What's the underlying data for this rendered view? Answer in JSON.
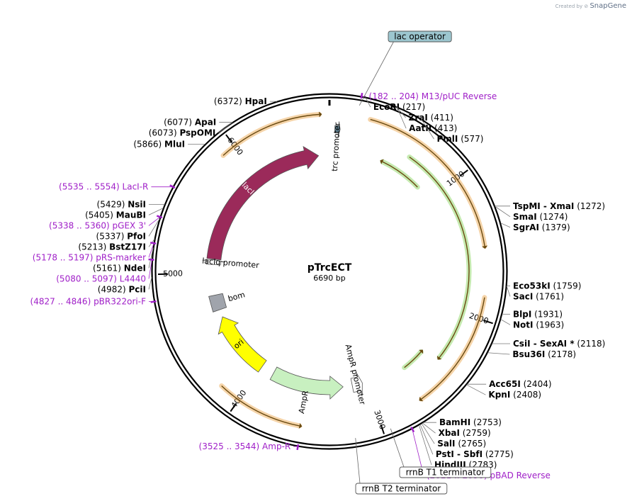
{
  "brand": {
    "created_by": "Created by",
    "app": "SnapGene"
  },
  "plasmid": {
    "name": "pTrcECT",
    "size": "6690 bp",
    "length": 6690
  },
  "ticks": [
    {
      "bp": 0,
      "label": ""
    },
    {
      "bp": 1000,
      "label": "1000"
    },
    {
      "bp": 2000,
      "label": "2000"
    },
    {
      "bp": 3000,
      "label": "3000"
    },
    {
      "bp": 4000,
      "label": "4000"
    },
    {
      "bp": 5000,
      "label": "5000"
    },
    {
      "bp": 6000,
      "label": "6000"
    }
  ],
  "sites": [
    {
      "name": "EcoRI",
      "pos": "(217)",
      "bp": 217
    },
    {
      "name": "ZraI",
      "pos": "(411)",
      "bp": 411
    },
    {
      "name": "AatII",
      "pos": "(413)",
      "bp": 413
    },
    {
      "name": "PmlI",
      "pos": "(577)",
      "bp": 577
    },
    {
      "name": "TspMI",
      "name2": "XmaI",
      "pos": "(1272)",
      "bp": 1272
    },
    {
      "name": "SmaI",
      "pos": "(1274)",
      "bp": 1274
    },
    {
      "name": "SgrAI",
      "pos": "(1379)",
      "bp": 1379
    },
    {
      "name": "Eco53kI",
      "pos": "(1759)",
      "bp": 1759
    },
    {
      "name": "SacI",
      "pos": "(1761)",
      "bp": 1761
    },
    {
      "name": "BlpI",
      "pos": "(1931)",
      "bp": 1931
    },
    {
      "name": "NotI",
      "pos": "(1963)",
      "bp": 1963
    },
    {
      "name": "CsiI",
      "name2": "SexAI *",
      "pos": "(2118)",
      "bp": 2118
    },
    {
      "name": "Bsu36I",
      "pos": "(2178)",
      "bp": 2178
    },
    {
      "name": "Acc65I",
      "pos": "(2404)",
      "bp": 2404
    },
    {
      "name": "KpnI",
      "pos": "(2408)",
      "bp": 2408
    },
    {
      "name": "BamHI",
      "pos": "(2753)",
      "bp": 2753
    },
    {
      "name": "XbaI",
      "pos": "(2759)",
      "bp": 2759
    },
    {
      "name": "SalI",
      "pos": "(2765)",
      "bp": 2765
    },
    {
      "name": "PstI",
      "name2": "SbfI",
      "pos": "(2775)",
      "bp": 2775
    },
    {
      "name": "HindIII",
      "pos": "(2783)",
      "bp": 2783
    },
    {
      "name": "PciI",
      "pos": "(4982)",
      "bp": 4982
    },
    {
      "name": "NdeI",
      "pos": "(5161)",
      "bp": 5161
    },
    {
      "name": "BstZ17I",
      "pos": "(5213)",
      "bp": 5213
    },
    {
      "name": "PfoI",
      "pos": "(5337)",
      "bp": 5337
    },
    {
      "name": "MauBI",
      "pos": "(5405)",
      "bp": 5405
    },
    {
      "name": "NsiI",
      "pos": "(5429)",
      "bp": 5429
    },
    {
      "name": "MluI",
      "pos": "(5866)",
      "bp": 5866
    },
    {
      "name": "PspOMI",
      "pos": "(6073)",
      "bp": 6073
    },
    {
      "name": "ApaI",
      "pos": "(6077)",
      "bp": 6077
    },
    {
      "name": "HpaI",
      "pos": "(6372)",
      "bp": 6372
    }
  ],
  "primers": [
    {
      "range": "(182 .. 204)",
      "name": "M13/pUC Reverse",
      "bp": 193
    },
    {
      "range": "(2821 .. 2838)",
      "name": "pBAD Reverse",
      "bp": 2830
    },
    {
      "range": "(3525 .. 3544)",
      "name": "Amp-R",
      "bp": 3535
    },
    {
      "range": "(4827 .. 4846)",
      "name": "pBR322ori-F",
      "bp": 4836
    },
    {
      "range": "(5080 .. 5097)",
      "name": "L4440",
      "bp": 5088
    },
    {
      "range": "(5178 .. 5197)",
      "name": "pRS-marker",
      "bp": 5187
    },
    {
      "range": "(5338 .. 5360)",
      "name": "pGEX 3'",
      "bp": 5349
    },
    {
      "range": "(5535 .. 5554)",
      "name": "LacI-R",
      "bp": 5545
    }
  ],
  "boxed_features": [
    {
      "name": "lac operator",
      "bp": 190,
      "style": "operator"
    },
    {
      "name": "rrnB T1 terminator",
      "bp": 2950,
      "style": "terminator"
    },
    {
      "name": "rrnB T2 terminator",
      "bp": 3180,
      "style": "terminator"
    }
  ],
  "features": [
    {
      "name": "lacI",
      "start": 5130,
      "end": 6590,
      "color": "#9b2a5a",
      "direction": "cw",
      "ring": "inner"
    },
    {
      "name": "lacIq promoter",
      "start": 5080,
      "end": 5125,
      "color": "#ffffff",
      "direction": "cw",
      "ring": "inner"
    },
    {
      "name": "trc promoter",
      "start": 40,
      "end": 80,
      "color": "#5a7a8a",
      "direction": "cw",
      "ring": "mid"
    },
    {
      "name": "bom",
      "start": 4660,
      "end": 4800,
      "color": "#a0a4ac",
      "direction": "none",
      "ring": "inner"
    },
    {
      "name": "ori",
      "start": 4000,
      "end": 4590,
      "color": "#ffff00",
      "direction": "cw",
      "ring": "inner"
    },
    {
      "name": "AmpR",
      "start": 3220,
      "end": 3880,
      "color": "#c8f0c0",
      "direction": "ccw",
      "ring": "inner"
    },
    {
      "name": "AmpR promoter",
      "start": 3040,
      "end": 3135,
      "color": "#ffffff",
      "direction": "ccw",
      "ring": "inner"
    }
  ],
  "translations": [
    {
      "start": 280,
      "end": 1500,
      "color": "#e8a040",
      "direction": "cw",
      "ring": "outer"
    },
    {
      "start": 1850,
      "end": 2680,
      "color": "#e8a040",
      "direction": "cw",
      "ring": "outer"
    },
    {
      "start": 3550,
      "end": 4150,
      "color": "#e8a040",
      "direction": "ccw",
      "ring": "outer"
    },
    {
      "start": 5900,
      "end": 6620,
      "color": "#e8a040",
      "direction": "cw",
      "ring": "outer"
    },
    {
      "start": 650,
      "end": 2380,
      "color": "#7fd050",
      "direction": "cw",
      "ring": "mid"
    },
    {
      "start": 480,
      "end": 860,
      "color": "#7fd050",
      "direction": "ccw",
      "ring": "mid2"
    },
    {
      "start": 2440,
      "end": 2640,
      "color": "#7fd050",
      "direction": "ccw",
      "ring": "mid2"
    }
  ],
  "colors": {
    "site_text": "#000000",
    "primer": "#a020c8",
    "backbone": "#000000",
    "operator_fill": "#9cc6cf"
  }
}
